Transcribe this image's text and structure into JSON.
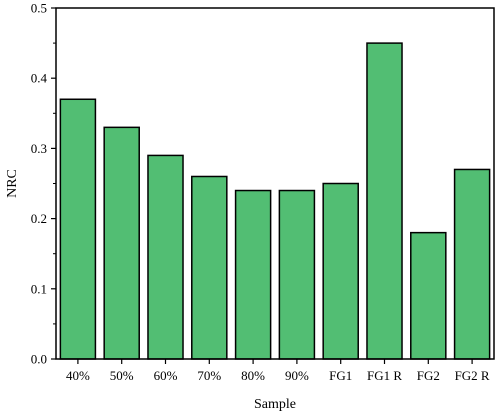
{
  "chart_data": {
    "type": "bar",
    "categories": [
      "40%",
      "50%",
      "60%",
      "70%",
      "80%",
      "90%",
      "FG1",
      "FG1 R",
      "FG2",
      "FG2 R"
    ],
    "values": [
      0.37,
      0.33,
      0.29,
      0.26,
      0.24,
      0.24,
      0.25,
      0.45,
      0.18,
      0.27
    ],
    "xlabel": "Sample",
    "ylabel": "NRC",
    "ylim": [
      0,
      0.5
    ],
    "yticks": [
      "0.0",
      "0.1",
      "0.2",
      "0.3",
      "0.4",
      "0.5"
    ],
    "grid": false,
    "legend": "none",
    "bar_color": "#52be73",
    "bar_edge_color": "#000000"
  }
}
